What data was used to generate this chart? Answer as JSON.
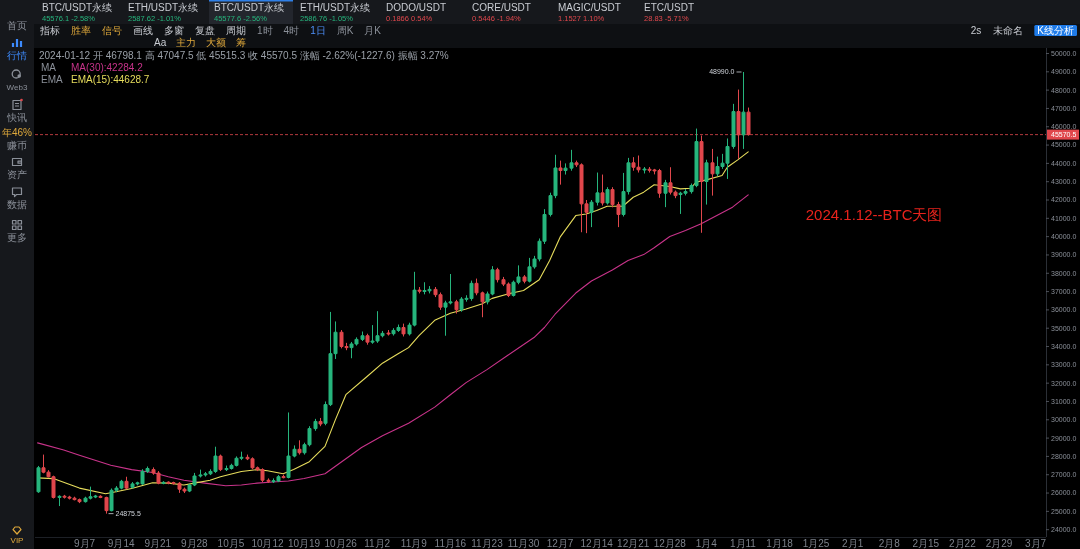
{
  "chart_data": [
    {
      "type": "other",
      "annotations": [
        "BTC/USDT永续",
        "45576.1 -2.58%",
        "ETH/USDT永续",
        "2587.62 -1.01%",
        "BTC/USDT永续",
        "45577.6 -2.56%",
        "ETH/USDT永续",
        "2586.76 -1.05%",
        "DODO/USDT",
        "0.1866 0.54%",
        "CORE/USDT",
        "0.5446 -1.94%",
        "MAGIC/USDT",
        "1.1527 1.10%",
        "ETC/USDT",
        "28.83 -5.71%"
      ],
      "colors": [
        "#26b57d",
        "#26b57d",
        "#26b57d",
        "#26b57d",
        "#e0474c",
        "#e0474c",
        "#e0474c",
        "#e0474c"
      ]
    },
    {
      "type": "other",
      "annotations": [
        "指标",
        "胜率",
        "信号",
        "画线",
        "多窗",
        "复盘",
        "周期",
        "1时",
        "4时",
        "1日",
        "周K",
        "月K"
      ],
      "colors": [
        "#c9ccd2",
        "#e0a93b",
        "#e0a93b",
        "#c9ccd2",
        "#c9ccd2",
        "#c9ccd2",
        "#c9ccd2",
        "#8b9099",
        "#8b9099",
        "#4d8ff7",
        "#8b9099",
        "#8b9099"
      ]
    },
    {
      "type": "other",
      "annotations": [
        "Aa",
        "主力",
        "大额",
        "筹"
      ],
      "colors": [
        "#c9ccd2",
        "#e0a93b",
        "#e0a93b",
        "#e0a93b"
      ]
    },
    {
      "type": "other",
      "annotations": [
        "2s",
        "未命名",
        "K线分析"
      ],
      "colors": [
        "#c9ccd2",
        "#c9ccd2",
        "#ffffff"
      ]
    },
    {
      "type": "other",
      "annotations": [
        "首页",
        "行情",
        "Web3",
        "快讯",
        "年46%",
        "赚币",
        "资产",
        "数据",
        "更多",
        "VIP"
      ],
      "colors": [
        "#8b9099",
        "#3d8bfd",
        "#8b9099",
        "#8b9099",
        "#e0a93b",
        "#8b9099",
        "#8b9099",
        "#8b9099",
        "#8b9099",
        "#e0a93b"
      ]
    },
    {
      "type": "candlestick",
      "title": "2024.1.12--BTC天图",
      "x": [
        "2023-08-29",
        "2023-08-30",
        "2023-08-31",
        "2023-09-01",
        "2023-09-02",
        "2023-09-03",
        "2023-09-04",
        "2023-09-05",
        "2023-09-06",
        "2023-09-07",
        "2023-09-08",
        "2023-09-09",
        "2023-09-10",
        "2023-09-11",
        "2023-09-12",
        "2023-09-13",
        "2023-09-14",
        "2023-09-15",
        "2023-09-16",
        "2023-09-17",
        "2023-09-18",
        "2023-09-19",
        "2023-09-20",
        "2023-09-21",
        "2023-09-22",
        "2023-09-23",
        "2023-09-24",
        "2023-09-25",
        "2023-09-26",
        "2023-09-27",
        "2023-09-28",
        "2023-09-29",
        "2023-09-30",
        "2023-10-01",
        "2023-10-02",
        "2023-10-03",
        "2023-10-04",
        "2023-10-05",
        "2023-10-06",
        "2023-10-07",
        "2023-10-08",
        "2023-10-09",
        "2023-10-10",
        "2023-10-11",
        "2023-10-12",
        "2023-10-13",
        "2023-10-14",
        "2023-10-15",
        "2023-10-16",
        "2023-10-17",
        "2023-10-18",
        "2023-10-19",
        "2023-10-20",
        "2023-10-21",
        "2023-10-22",
        "2023-10-23",
        "2023-10-24",
        "2023-10-25",
        "2023-10-26",
        "2023-10-27",
        "2023-10-28",
        "2023-10-29",
        "2023-10-30",
        "2023-10-31",
        "2023-11-01",
        "2023-11-02",
        "2023-11-03",
        "2023-11-04",
        "2023-11-05",
        "2023-11-06",
        "2023-11-07",
        "2023-11-08",
        "2023-11-09",
        "2023-11-10",
        "2023-11-11",
        "2023-11-12",
        "2023-11-13",
        "2023-11-14",
        "2023-11-15",
        "2023-11-16",
        "2023-11-17",
        "2023-11-18",
        "2023-11-19",
        "2023-11-20",
        "2023-11-21",
        "2023-11-22",
        "2023-11-23",
        "2023-11-24",
        "2023-11-25",
        "2023-11-26",
        "2023-11-27",
        "2023-11-28",
        "2023-11-29",
        "2023-11-30",
        "2023-12-01",
        "2023-12-02",
        "2023-12-03",
        "2023-12-04",
        "2023-12-05",
        "2023-12-06",
        "2023-12-07",
        "2023-12-08",
        "2023-12-09",
        "2023-12-10",
        "2023-12-11",
        "2023-12-12",
        "2023-12-13",
        "2023-12-14",
        "2023-12-15",
        "2023-12-16",
        "2023-12-17",
        "2023-12-18",
        "2023-12-19",
        "2023-12-20",
        "2023-12-21",
        "2023-12-22",
        "2023-12-23",
        "2023-12-24",
        "2023-12-25",
        "2023-12-26",
        "2023-12-27",
        "2023-12-28",
        "2023-12-29",
        "2023-12-30",
        "2023-12-31",
        "2024-01-01",
        "2024-01-02",
        "2024-01-03",
        "2024-01-04",
        "2024-01-05",
        "2024-01-06",
        "2024-01-07",
        "2024-01-08",
        "2024-01-09",
        "2024-01-10",
        "2024-01-11",
        "2024-01-12"
      ],
      "ohlc": [
        [
          26070,
          27480,
          26010,
          27380
        ],
        [
          27380,
          28100,
          27080,
          27140
        ],
        [
          27140,
          27250,
          26850,
          26890
        ],
        [
          26890,
          26950,
          25700,
          25760
        ],
        [
          25760,
          25880,
          25290,
          25820
        ],
        [
          25820,
          25900,
          25700,
          25780
        ],
        [
          25780,
          25850,
          25650,
          25720
        ],
        [
          25720,
          25800,
          25600,
          25640
        ],
        [
          25640,
          25700,
          25450,
          25530
        ],
        [
          25530,
          25800,
          25480,
          25720
        ],
        [
          25720,
          26350,
          25650,
          25800
        ],
        [
          25800,
          25900,
          25720,
          25820
        ],
        [
          25820,
          25880,
          25720,
          25760
        ],
        [
          25760,
          25800,
          24875.5,
          25040
        ],
        [
          25040,
          26250,
          25000,
          26150
        ],
        [
          26150,
          26380,
          26050,
          26270
        ],
        [
          26270,
          26720,
          26200,
          26640
        ],
        [
          26640,
          26890,
          26200,
          26270
        ],
        [
          26310,
          26600,
          26250,
          26500
        ],
        [
          26500,
          26620,
          26420,
          26560
        ],
        [
          26500,
          27300,
          26450,
          27180
        ],
        [
          27180,
          27450,
          27100,
          27340
        ],
        [
          27280,
          27400,
          27000,
          27090
        ],
        [
          27090,
          27200,
          26480,
          26540
        ],
        [
          26540,
          26650,
          26480,
          26570
        ],
        [
          26570,
          26640,
          26480,
          26560
        ],
        [
          26560,
          26620,
          26460,
          26530
        ],
        [
          26530,
          26600,
          26010,
          26210
        ],
        [
          26210,
          26300,
          26000,
          26110
        ],
        [
          26110,
          26500,
          26050,
          26440
        ],
        [
          26440,
          27100,
          26380,
          26930
        ],
        [
          26930,
          27280,
          26850,
          26990
        ],
        [
          26990,
          27150,
          26900,
          27050
        ],
        [
          27050,
          27300,
          26980,
          27180
        ],
        [
          27180,
          28530,
          27100,
          28020
        ],
        [
          28020,
          28100,
          27200,
          27280
        ],
        [
          27280,
          27500,
          27200,
          27340
        ],
        [
          27340,
          27600,
          27280,
          27510
        ],
        [
          27510,
          28000,
          27450,
          27900
        ],
        [
          27900,
          28260,
          27800,
          27950
        ],
        [
          27950,
          28100,
          27800,
          27870
        ],
        [
          27870,
          27950,
          27300,
          27380
        ],
        [
          27380,
          27450,
          27200,
          27280
        ],
        [
          27280,
          27350,
          26600,
          26700
        ],
        [
          26700,
          26800,
          26550,
          26640
        ],
        [
          26640,
          26800,
          26550,
          26660
        ],
        [
          26660,
          26980,
          26600,
          26890
        ],
        [
          26890,
          27000,
          26800,
          26850
        ],
        [
          26850,
          30400,
          26800,
          28020
        ],
        [
          28020,
          28600,
          27950,
          28390
        ],
        [
          28390,
          28880,
          28100,
          28200
        ],
        [
          28200,
          28750,
          28100,
          28640
        ],
        [
          28640,
          29650,
          28550,
          29520
        ],
        [
          29520,
          30050,
          29400,
          29910
        ],
        [
          29910,
          30100,
          29650,
          29770
        ],
        [
          29810,
          31000,
          29700,
          30830
        ],
        [
          30830,
          35890,
          30750,
          33610
        ],
        [
          33610,
          35370,
          33320,
          34780
        ],
        [
          34780,
          34900,
          33900,
          34000
        ],
        [
          34000,
          34200,
          33800,
          33940
        ],
        [
          33940,
          34250,
          33360,
          34140
        ],
        [
          34140,
          34500,
          34050,
          34390
        ],
        [
          34390,
          34820,
          34300,
          34590
        ],
        [
          34590,
          34700,
          34100,
          34240
        ],
        [
          34240,
          35170,
          34150,
          34300
        ],
        [
          34300,
          35930,
          34200,
          34590
        ],
        [
          34590,
          34850,
          34500,
          34720
        ],
        [
          34720,
          34900,
          34600,
          34700
        ],
        [
          34700,
          35000,
          34600,
          34880
        ],
        [
          34880,
          35200,
          34800,
          35040
        ],
        [
          35040,
          35250,
          34550,
          34690
        ],
        [
          34690,
          35300,
          34600,
          35170
        ],
        [
          35170,
          38080,
          35100,
          37080
        ],
        [
          37080,
          37250,
          36900,
          37020
        ],
        [
          37020,
          37510,
          36850,
          37040
        ],
        [
          37040,
          37300,
          36900,
          37120
        ],
        [
          37120,
          37250,
          36700,
          36830
        ],
        [
          36830,
          36950,
          36000,
          36150
        ],
        [
          36150,
          36500,
          34590,
          36380
        ],
        [
          36380,
          37960,
          36300,
          36440
        ],
        [
          36440,
          36550,
          35800,
          36010
        ],
        [
          36010,
          36700,
          35900,
          36590
        ],
        [
          36590,
          36800,
          36450,
          36620
        ],
        [
          36620,
          37600,
          36500,
          37450
        ],
        [
          37450,
          37710,
          36800,
          36930
        ],
        [
          36930,
          37000,
          35600,
          36440
        ],
        [
          36440,
          37000,
          36300,
          36870
        ],
        [
          36870,
          38390,
          36800,
          38190
        ],
        [
          38190,
          38300,
          37500,
          37650
        ],
        [
          37650,
          37800,
          37300,
          37410
        ],
        [
          37410,
          37500,
          36700,
          36790
        ],
        [
          36790,
          37600,
          36730,
          37510
        ],
        [
          37510,
          38430,
          37400,
          37800
        ],
        [
          37800,
          37900,
          37450,
          37570
        ],
        [
          37570,
          38840,
          37500,
          38350
        ],
        [
          38350,
          38950,
          38250,
          38780
        ],
        [
          38780,
          39900,
          38650,
          39750
        ],
        [
          39750,
          41500,
          39600,
          41210
        ],
        [
          41210,
          42400,
          41100,
          42240
        ],
        [
          42240,
          44470,
          42100,
          43750
        ],
        [
          43750,
          44150,
          42840,
          43610
        ],
        [
          43610,
          44000,
          43390,
          43740
        ],
        [
          43740,
          44740,
          43600,
          44030
        ],
        [
          44030,
          44150,
          43800,
          43920
        ],
        [
          43920,
          44000,
          40240,
          41790
        ],
        [
          41790,
          42000,
          40190,
          41330
        ],
        [
          41330,
          42000,
          40520,
          41880
        ],
        [
          41880,
          43500,
          41700,
          42390
        ],
        [
          42390,
          43390,
          41700,
          41840
        ],
        [
          41840,
          42700,
          41750,
          42570
        ],
        [
          42570,
          42700,
          41600,
          41750
        ],
        [
          41750,
          41900,
          40520,
          41210
        ],
        [
          41210,
          43480,
          41100,
          42460
        ],
        [
          42460,
          44300,
          42300,
          44030
        ],
        [
          44030,
          44340,
          43600,
          43790
        ],
        [
          43790,
          44430,
          43500,
          43650
        ],
        [
          43650,
          43800,
          43450,
          43680
        ],
        [
          43680,
          43800,
          43500,
          43620
        ],
        [
          43620,
          43700,
          43400,
          43610
        ],
        [
          43610,
          43700,
          42120,
          42370
        ],
        [
          42370,
          43100,
          41610,
          42940
        ],
        [
          42940,
          43790,
          42300,
          42430
        ],
        [
          42430,
          42520,
          42100,
          42240
        ],
        [
          42300,
          42450,
          41240,
          42370
        ],
        [
          42370,
          42600,
          42250,
          42460
        ],
        [
          42460,
          42900,
          42350,
          42790
        ],
        [
          42790,
          45900,
          42700,
          45190
        ],
        [
          45190,
          45520,
          40210,
          43010
        ],
        [
          43010,
          44200,
          41750,
          44030
        ],
        [
          44030,
          44790,
          42240,
          43430
        ],
        [
          43430,
          44370,
          43300,
          43830
        ],
        [
          43830,
          44520,
          43700,
          44010
        ],
        [
          44010,
          45360,
          43150,
          44920
        ],
        [
          44920,
          47250,
          44800,
          46830
        ],
        [
          46830,
          48030,
          44250,
          45560
        ],
        [
          45560,
          48990,
          44790,
          46798.1
        ],
        [
          46798.1,
          47047.5,
          45515.3,
          45570.5
        ]
      ],
      "colors": [
        "#26b57d",
        "#e0474c",
        "#e0474c",
        "#e0474c",
        "#26b57d",
        "#e0474c",
        "#e0474c",
        "#e0474c",
        "#e0474c",
        "#26b57d",
        "#26b57d",
        "#26b57d",
        "#e0474c",
        "#e0474c",
        "#26b57d",
        "#26b57d",
        "#26b57d",
        "#e0474c",
        "#26b57d",
        "#26b57d",
        "#26b57d",
        "#26b57d",
        "#e0474c",
        "#e0474c",
        "#26b57d",
        "#e0474c",
        "#e0474c",
        "#e0474c",
        "#e0474c",
        "#26b57d",
        "#26b57d",
        "#26b57d",
        "#26b57d",
        "#26b57d",
        "#26b57d",
        "#e0474c",
        "#26b57d",
        "#26b57d",
        "#26b57d",
        "#26b57d",
        "#e0474c",
        "#e0474c",
        "#e0474c",
        "#e0474c",
        "#e0474c",
        "#26b57d",
        "#26b57d",
        "#e0474c",
        "#26b57d",
        "#26b57d",
        "#e0474c",
        "#26b57d",
        "#26b57d",
        "#26b57d",
        "#e0474c",
        "#26b57d",
        "#26b57d",
        "#26b57d",
        "#e0474c",
        "#e0474c",
        "#26b57d",
        "#26b57d",
        "#26b57d",
        "#e0474c",
        "#26b57d",
        "#26b57d",
        "#26b57d",
        "#e0474c",
        "#26b57d",
        "#26b57d",
        "#e0474c",
        "#26b57d",
        "#26b57d",
        "#e0474c",
        "#26b57d",
        "#26b57d",
        "#e0474c",
        "#e0474c",
        "#26b57d",
        "#26b57d",
        "#e0474c",
        "#26b57d",
        "#26b57d",
        "#26b57d",
        "#e0474c",
        "#e0474c",
        "#26b57d",
        "#26b57d",
        "#e0474c",
        "#e0474c",
        "#e0474c",
        "#26b57d",
        "#26b57d",
        "#e0474c",
        "#26b57d",
        "#26b57d",
        "#26b57d",
        "#26b57d",
        "#26b57d",
        "#26b57d",
        "#e0474c",
        "#26b57d",
        "#26b57d",
        "#e0474c",
        "#e0474c",
        "#e0474c",
        "#26b57d",
        "#26b57d",
        "#e0474c",
        "#26b57d",
        "#e0474c",
        "#e0474c",
        "#26b57d",
        "#26b57d",
        "#e0474c",
        "#e0474c",
        "#26b57d",
        "#e0474c",
        "#e0474c",
        "#e0474c",
        "#26b57d",
        "#e0474c",
        "#e0474c",
        "#26b57d",
        "#26b57d",
        "#26b57d",
        "#26b57d",
        "#e0474c",
        "#26b57d",
        "#e0474c",
        "#26b57d",
        "#26b57d",
        "#26b57d",
        "#26b57d",
        "#e0474c",
        "#26b57d",
        "#e0474c"
      ],
      "series": [
        {
          "name": "MA(30):42284.2",
          "type": "line",
          "color": "#c8338a",
          "x": [
            "2023-08-29",
            "2023-09-03",
            "2023-09-06",
            "2023-09-12",
            "2023-09-16",
            "2023-09-20",
            "2023-09-23",
            "2023-09-26",
            "2023-09-30",
            "2023-10-04",
            "2023-10-07",
            "2023-10-10",
            "2023-10-13",
            "2023-10-16",
            "2023-10-19",
            "2023-10-23",
            "2023-10-27",
            "2023-10-30",
            "2023-11-03",
            "2023-11-08",
            "2023-11-13",
            "2023-11-16",
            "2023-11-19",
            "2023-11-23",
            "2023-11-27",
            "2023-12-02",
            "2023-12-04",
            "2023-12-06",
            "2023-12-10",
            "2023-12-13",
            "2023-12-17",
            "2023-12-20",
            "2023-12-23",
            "2023-12-25",
            "2023-12-28",
            "2023-12-31",
            "2024-01-03",
            "2024-01-06",
            "2024-01-09",
            "2024-01-12"
          ],
          "values": [
            28740,
            28350,
            28060,
            27520,
            27280,
            27120,
            26890,
            26700,
            26540,
            26400,
            26440,
            26540,
            26600,
            26660,
            26790,
            27050,
            27870,
            28490,
            29130,
            29810,
            30690,
            31370,
            32030,
            32740,
            33520,
            34490,
            35040,
            35750,
            36920,
            37580,
            38180,
            38700,
            39020,
            39390,
            40010,
            40330,
            40700,
            41150,
            41610,
            42280
          ]
        },
        {
          "name": "EMA(15):44628.7",
          "type": "line",
          "color": "#e6dc5c",
          "x": [
            "2023-08-29",
            "2023-09-01",
            "2023-09-06",
            "2023-09-11",
            "2023-09-13",
            "2023-09-16",
            "2023-09-20",
            "2023-09-23",
            "2023-09-26",
            "2023-09-28",
            "2023-10-01",
            "2023-10-03",
            "2023-10-07",
            "2023-10-10",
            "2023-10-12",
            "2023-10-15",
            "2023-10-17",
            "2023-10-20",
            "2023-10-23",
            "2023-10-25",
            "2023-10-27",
            "2023-10-31",
            "2023-11-03",
            "2023-11-06",
            "2023-11-08",
            "2023-11-10",
            "2023-11-13",
            "2023-11-16",
            "2023-11-19",
            "2023-11-22",
            "2023-11-24",
            "2023-11-27",
            "2023-11-30",
            "2023-12-03",
            "2023-12-05",
            "2023-12-07",
            "2023-12-10",
            "2023-12-12",
            "2023-12-14",
            "2023-12-16",
            "2023-12-19",
            "2023-12-21",
            "2023-12-23",
            "2023-12-25",
            "2023-12-28",
            "2023-12-30",
            "2024-01-01",
            "2024-01-02",
            "2024-01-04",
            "2024-01-07",
            "2024-01-08",
            "2024-01-10",
            "2024-01-12"
          ],
          "values": [
            26830,
            26790,
            26270,
            25960,
            26070,
            26250,
            26560,
            26540,
            26440,
            26540,
            26700,
            26890,
            27180,
            27280,
            27220,
            27050,
            27280,
            27710,
            28550,
            30010,
            31370,
            32350,
            33090,
            33610,
            33940,
            34590,
            35430,
            35820,
            36050,
            36320,
            36630,
            36870,
            37060,
            37650,
            38700,
            39970,
            41150,
            41240,
            41430,
            41660,
            41660,
            42150,
            42430,
            42830,
            42740,
            42610,
            42640,
            42970,
            43100,
            43340,
            43790,
            44190,
            44630
          ]
        }
      ],
      "xlim": [
        "2023-08-28T12:00",
        "2024-03-09"
      ],
      "xticks": [
        {
          "value": "2023-09-07",
          "label": "9月7"
        },
        {
          "value": "2023-09-14",
          "label": "9月14"
        },
        {
          "value": "2023-09-21",
          "label": "9月21"
        },
        {
          "value": "2023-09-28",
          "label": "9月28"
        },
        {
          "value": "2023-10-05",
          "label": "10月5"
        },
        {
          "value": "2023-10-12",
          "label": "10月12"
        },
        {
          "value": "2023-10-19",
          "label": "10月19"
        },
        {
          "value": "2023-10-26",
          "label": "10月26"
        },
        {
          "value": "2023-11-02",
          "label": "11月2"
        },
        {
          "value": "2023-11-09",
          "label": "11月9"
        },
        {
          "value": "2023-11-16",
          "label": "11月16"
        },
        {
          "value": "2023-11-23",
          "label": "11月23"
        },
        {
          "value": "2023-11-30",
          "label": "11月30"
        },
        {
          "value": "2023-12-07",
          "label": "12月7"
        },
        {
          "value": "2023-12-14",
          "label": "12月14"
        },
        {
          "value": "2023-12-21",
          "label": "12月21"
        },
        {
          "value": "2023-12-28",
          "label": "12月28"
        },
        {
          "value": "2024-01-04",
          "label": "1月4"
        },
        {
          "value": "2024-01-11",
          "label": "1月11"
        },
        {
          "value": "2024-01-18",
          "label": "1月18"
        },
        {
          "value": "2024-01-25",
          "label": "1月25"
        },
        {
          "value": "2024-02-01",
          "label": "2月1"
        },
        {
          "value": "2024-02-08",
          "label": "2月8"
        },
        {
          "value": "2024-02-15",
          "label": "2月15"
        },
        {
          "value": "2024-02-22",
          "label": "2月22"
        },
        {
          "value": "2024-02-29",
          "label": "2月29"
        },
        {
          "value": "2024-03-07",
          "label": "3月7"
        }
      ],
      "ylim": [
        23600,
        50300
      ],
      "yticks": [
        {
          "value": 24000,
          "label": "24000.0"
        },
        {
          "value": 25000,
          "label": "25000.0"
        },
        {
          "value": 26000,
          "label": "26000.0"
        },
        {
          "value": 27000,
          "label": "27000.0"
        },
        {
          "value": 28000,
          "label": "28000.0"
        },
        {
          "value": 29000,
          "label": "29000.0"
        },
        {
          "value": 30000,
          "label": "30000.0"
        },
        {
          "value": 31000,
          "label": "31000.0"
        },
        {
          "value": 32000,
          "label": "32000.0"
        },
        {
          "value": 33000,
          "label": "33000.0"
        },
        {
          "value": 34000,
          "label": "34000.0"
        },
        {
          "value": 35000,
          "label": "35000.0"
        },
        {
          "value": 36000,
          "label": "36000.0"
        },
        {
          "value": 37000,
          "label": "37000.0"
        },
        {
          "value": 38000,
          "label": "38000.0"
        },
        {
          "value": 39000,
          "label": "39000.0"
        },
        {
          "value": 40000,
          "label": "40000.0"
        },
        {
          "value": 41000,
          "label": "41000.0"
        },
        {
          "value": 42000,
          "label": "42000.0"
        },
        {
          "value": 43000,
          "label": "43000.0"
        },
        {
          "value": 44000,
          "label": "44000.0"
        },
        {
          "value": 45000,
          "label": "45000.0"
        },
        {
          "value": 46000,
          "label": "46000.0"
        },
        {
          "value": 47000,
          "label": "47000.0"
        },
        {
          "value": 48000,
          "label": "48000.0"
        },
        {
          "value": 49000,
          "label": "49000.0"
        },
        {
          "value": 50000,
          "label": "50000.0"
        }
      ],
      "ref_lines": [
        {
          "axis": "y",
          "value": 45570.5,
          "label": "45570.5",
          "color": "#e0474c",
          "line_style": "dashed"
        }
      ],
      "annotations": [
        "2024-01-12 开 46798.1 高 47047.5 低 45515.3 收 45570.5 涨幅 -2.62%(-1227.6) 振幅 3.27%",
        "MA",
        "EMA",
        {
          "text": "48990.0",
          "x": "2024-01-11",
          "y": 48990
        },
        {
          "text": "24875.5",
          "x": "2023-09-11",
          "y": 24875.5
        }
      ],
      "legend": "top left"
    }
  ]
}
